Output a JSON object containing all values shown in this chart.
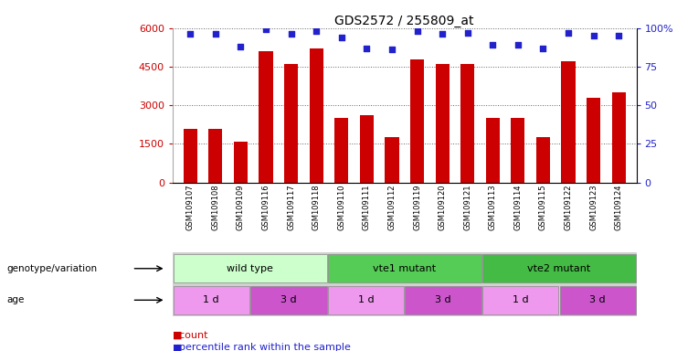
{
  "title": "GDS2572 / 255809_at",
  "samples": [
    "GSM109107",
    "GSM109108",
    "GSM109109",
    "GSM109116",
    "GSM109117",
    "GSM109118",
    "GSM109110",
    "GSM109111",
    "GSM109112",
    "GSM109119",
    "GSM109120",
    "GSM109121",
    "GSM109113",
    "GSM109114",
    "GSM109115",
    "GSM109122",
    "GSM109123",
    "GSM109124"
  ],
  "counts": [
    2100,
    2100,
    1600,
    5100,
    4600,
    5200,
    2500,
    2600,
    1750,
    4800,
    4600,
    4600,
    2500,
    2500,
    1750,
    4700,
    3300,
    3500
  ],
  "percentiles": [
    96,
    96,
    88,
    99,
    96,
    98,
    94,
    87,
    86,
    98,
    96,
    97,
    89,
    89,
    87,
    97,
    95,
    95
  ],
  "bar_color": "#cc0000",
  "dot_color": "#2222cc",
  "ylim_left": [
    0,
    6000
  ],
  "ylim_right": [
    0,
    100
  ],
  "yticks_left": [
    0,
    1500,
    3000,
    4500,
    6000
  ],
  "yticks_right": [
    0,
    25,
    50,
    75,
    100
  ],
  "ytick_labels_left": [
    "0",
    "1500",
    "3000",
    "4500",
    "6000"
  ],
  "ytick_labels_right": [
    "0",
    "25",
    "50",
    "75",
    "100%"
  ],
  "genotype_groups": [
    {
      "label": "wild type",
      "start": 0,
      "end": 6,
      "color": "#ccffcc"
    },
    {
      "label": "vte1 mutant",
      "start": 6,
      "end": 12,
      "color": "#55cc55"
    },
    {
      "label": "vte2 mutant",
      "start": 12,
      "end": 18,
      "color": "#44bb44"
    }
  ],
  "age_groups": [
    {
      "label": "1 d",
      "start": 0,
      "end": 3,
      "color": "#ee99ee"
    },
    {
      "label": "3 d",
      "start": 3,
      "end": 6,
      "color": "#cc55cc"
    },
    {
      "label": "1 d",
      "start": 6,
      "end": 9,
      "color": "#ee99ee"
    },
    {
      "label": "3 d",
      "start": 9,
      "end": 12,
      "color": "#cc55cc"
    },
    {
      "label": "1 d",
      "start": 12,
      "end": 15,
      "color": "#ee99ee"
    },
    {
      "label": "3 d",
      "start": 15,
      "end": 18,
      "color": "#cc55cc"
    }
  ],
  "legend_count_color": "#cc0000",
  "legend_pct_color": "#2222cc",
  "grid_color": "#666666",
  "background_color": "#ffffff",
  "title_fontsize": 10,
  "axis_label_color_left": "#cc0000",
  "axis_label_color_right": "#2222cc"
}
